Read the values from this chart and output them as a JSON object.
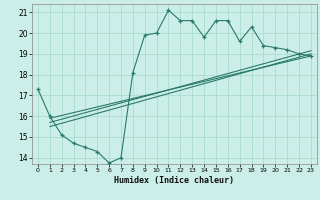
{
  "title": "",
  "xlabel": "Humidex (Indice chaleur)",
  "bg_color": "#cceee8",
  "grid_color": "#aaddcc",
  "line_color": "#2a7a6a",
  "xlim": [
    -0.5,
    23.5
  ],
  "ylim": [
    13.7,
    21.4
  ],
  "yticks": [
    14,
    15,
    16,
    17,
    18,
    19,
    20,
    21
  ],
  "xticks": [
    0,
    1,
    2,
    3,
    4,
    5,
    6,
    7,
    8,
    9,
    10,
    11,
    12,
    13,
    14,
    15,
    16,
    17,
    18,
    19,
    20,
    21,
    22,
    23
  ],
  "series1_x": [
    0,
    1,
    2,
    3,
    4,
    5,
    6,
    7,
    8,
    9,
    10,
    11,
    12,
    13,
    14,
    15,
    16,
    17,
    18,
    19,
    20,
    21,
    22,
    23
  ],
  "series1_y": [
    17.3,
    16.0,
    15.1,
    14.7,
    14.5,
    14.3,
    13.75,
    14.0,
    18.1,
    19.9,
    20.0,
    21.1,
    20.6,
    20.6,
    19.8,
    20.6,
    20.6,
    19.6,
    20.3,
    19.4,
    19.3,
    19.2,
    19.0,
    18.9
  ],
  "series2_x": [
    1,
    23
  ],
  "series2_y": [
    15.5,
    19.0
  ],
  "series3_x": [
    1,
    23
  ],
  "series3_y": [
    15.7,
    19.15
  ],
  "series4_x": [
    1,
    23
  ],
  "series4_y": [
    15.9,
    18.9
  ]
}
